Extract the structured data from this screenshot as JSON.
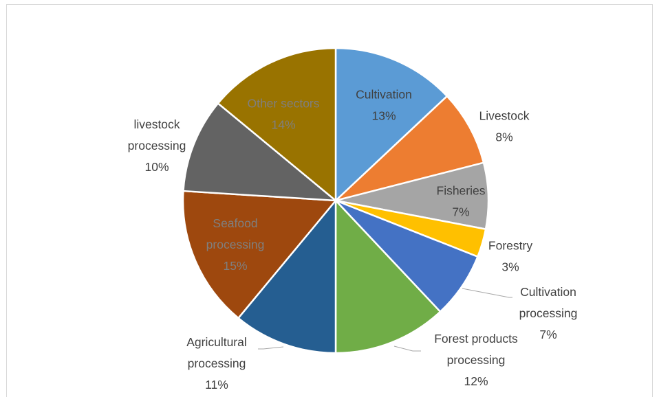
{
  "chart_data": {
    "type": "pie",
    "title": "",
    "slices": [
      {
        "label": "Cultivation",
        "value": 13,
        "display": "13%",
        "color": "#5b9bd5",
        "label_inside": true,
        "label_color": "#404040"
      },
      {
        "label": "Livestock",
        "value": 8,
        "display": "8%",
        "color": "#ed7d31",
        "label_inside": false,
        "label_color": "#404040"
      },
      {
        "label": "Fisheries",
        "value": 7,
        "display": "7%",
        "color": "#a5a5a5",
        "label_inside": true,
        "label_color": "#404040"
      },
      {
        "label": "Forestry",
        "value": 3,
        "display": "3%",
        "color": "#ffc000",
        "label_inside": false,
        "label_color": "#404040"
      },
      {
        "label": "Cultivation processing",
        "value": 7,
        "display": "7%",
        "color": "#4472c4",
        "label_inside": false,
        "label_color": "#404040"
      },
      {
        "label": "Forest products processing",
        "value": 12,
        "display": "12%",
        "color": "#70ad47",
        "label_inside": false,
        "label_color": "#404040"
      },
      {
        "label": "Agricultural processing",
        "value": 11,
        "display": "11%",
        "color": "#255e91",
        "label_inside": false,
        "label_color": "#404040"
      },
      {
        "label": "Seafood processing",
        "value": 15,
        "display": "15%",
        "color": "#9e480e",
        "label_inside": true,
        "label_color": "#7f7f7f"
      },
      {
        "label": "livestock processing",
        "value": 10,
        "display": "10%",
        "color": "#636363",
        "label_inside": false,
        "label_color": "#404040"
      },
      {
        "label": "Other sectors",
        "value": 14,
        "display": "14%",
        "color": "#997300",
        "label_inside": true,
        "label_color": "#7f7f7f"
      }
    ],
    "legend": "none",
    "data_labels": "category name and percentage",
    "start_angle": "12 o'clock, clockwise"
  }
}
